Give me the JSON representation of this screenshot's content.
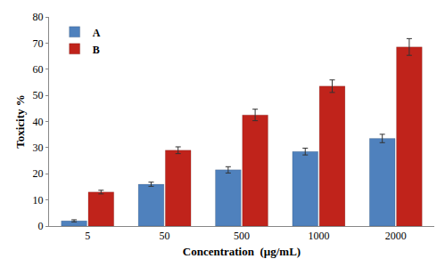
{
  "chart_data": {
    "type": "bar",
    "x_label": "Concentration  (µg/mL)",
    "y_label": "Toxicity %",
    "categories": [
      "5",
      "50",
      "500",
      "1000",
      "2000"
    ],
    "series": [
      {
        "name": "A",
        "color": "#4f81bd",
        "values": [
          2,
          16,
          21.5,
          28.5,
          33.5
        ],
        "errors": [
          0.4,
          0.8,
          1.2,
          1.3,
          1.6
        ]
      },
      {
        "name": "B",
        "color": "#c0231b",
        "values": [
          13,
          29,
          42.5,
          53.5,
          68.5
        ],
        "errors": [
          0.7,
          1.3,
          2.2,
          2.4,
          3.2
        ]
      }
    ],
    "ylim": [
      0,
      80
    ],
    "yticks": [
      0,
      10,
      20,
      30,
      40,
      50,
      60,
      70,
      80
    ],
    "grid": false,
    "legend": "upper left"
  }
}
